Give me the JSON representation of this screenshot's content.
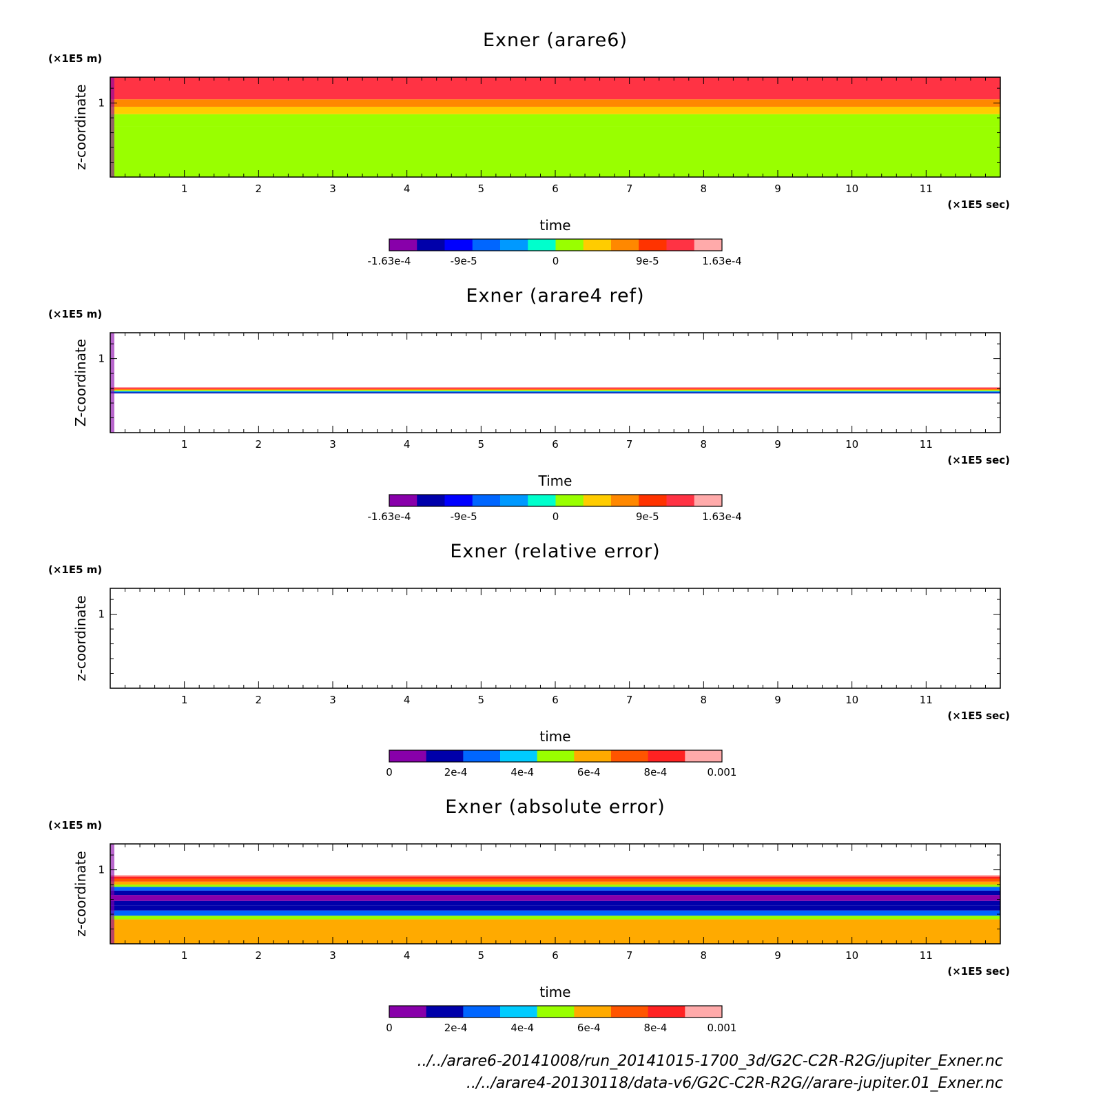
{
  "colors": {
    "diverging": [
      "#8800aa",
      "#0000aa",
      "#0000ff",
      "#0066ff",
      "#0099ff",
      "#00ffcc",
      "#99ff00",
      "#ffcc00",
      "#ff8800",
      "#ff3300",
      "#ff3344",
      "#ffaaaa"
    ],
    "sequential": [
      "#8800aa",
      "#0000aa",
      "#0066ff",
      "#00ccff",
      "#99ff00",
      "#ffaa00",
      "#ff5500",
      "#ff2222",
      "#ffaaaa"
    ]
  },
  "footer": {
    "path1": "../../arare6-20141008/run_20141015-1700_3d/G2C-C2R-R2G/jupiter_Exner.nc",
    "path2": "../../arare4-20130118/data-v6/G2C-C2R-R2G//arare-jupiter.01_Exner.nc"
  },
  "chart_data": [
    {
      "type": "heatmap",
      "title": "Exner (arare6)",
      "xlabel": "time",
      "ylabel": "z-coordinate",
      "x_unit": "(×1E5 sec)",
      "y_unit": "(×1E5 m)",
      "xlim": [
        0,
        12
      ],
      "ylim": [
        0,
        1.35
      ],
      "x_ticks": [
        "1",
        "2",
        "3",
        "4",
        "5",
        "6",
        "7",
        "8",
        "9",
        "10",
        "11"
      ],
      "y_ticks": [
        "1"
      ],
      "colorbar": {
        "min": -0.000163,
        "max": 0.000163,
        "labels": [
          "-1.63e-4",
          "-9e-5",
          "0",
          "9e-5",
          "1.63e-4"
        ]
      },
      "bands": [
        {
          "z_from": 0.0,
          "z_to": 0.68,
          "value": 0.0
        },
        {
          "z_from": 0.68,
          "z_to": 0.85,
          "value": 2e-05
        },
        {
          "z_from": 0.85,
          "z_to": 0.95,
          "value": 5e-05
        },
        {
          "z_from": 0.95,
          "z_to": 1.05,
          "value": 8e-05
        },
        {
          "z_from": 1.05,
          "z_to": 1.35,
          "value": 0.00012
        }
      ]
    },
    {
      "type": "heatmap",
      "title": "Exner (arare4 ref)",
      "xlabel": "Time",
      "ylabel": "Z-coordinate",
      "x_unit": "(×1E5 sec)",
      "y_unit": "(×1E5 m)",
      "xlim": [
        0,
        12
      ],
      "ylim": [
        0,
        1.35
      ],
      "x_ticks": [
        "1",
        "2",
        "3",
        "4",
        "5",
        "6",
        "7",
        "8",
        "9",
        "10",
        "11"
      ],
      "y_ticks": [
        "1"
      ],
      "colorbar": {
        "min": -0.000163,
        "max": 0.000163,
        "labels": [
          "-1.63e-4",
          "-9e-5",
          "0",
          "9e-5",
          "1.63e-4"
        ]
      },
      "bands": [
        {
          "z_from": 0.53,
          "z_to": 0.545,
          "value": -0.00012
        },
        {
          "z_from": 0.545,
          "z_to": 0.56,
          "value": -5e-05
        },
        {
          "z_from": 0.56,
          "z_to": 0.575,
          "value": 2e-05
        },
        {
          "z_from": 0.575,
          "z_to": 0.59,
          "value": 8e-05
        },
        {
          "z_from": 0.59,
          "z_to": 0.61,
          "value": 0.00012
        }
      ]
    },
    {
      "type": "heatmap",
      "title": "Exner (relative error)",
      "xlabel": "time",
      "ylabel": "z-coordinate",
      "x_unit": "(×1E5 sec)",
      "y_unit": "(×1E5 m)",
      "xlim": [
        0,
        12
      ],
      "ylim": [
        0,
        1.35
      ],
      "x_ticks": [
        "1",
        "2",
        "3",
        "4",
        "5",
        "6",
        "7",
        "8",
        "9",
        "10",
        "11"
      ],
      "y_ticks": [
        "1"
      ],
      "colorbar": {
        "min": 0,
        "max": 0.001,
        "labels": [
          "0",
          "2e-4",
          "4e-4",
          "6e-4",
          "8e-4",
          "0.001"
        ]
      },
      "bands": []
    },
    {
      "type": "heatmap",
      "title": "Exner (absolute error)",
      "xlabel": "time",
      "ylabel": "z-coordinate",
      "x_unit": "(×1E5 sec)",
      "y_unit": "(×1E5 m)",
      "xlim": [
        0,
        12
      ],
      "ylim": [
        0,
        1.35
      ],
      "x_ticks": [
        "1",
        "2",
        "3",
        "4",
        "5",
        "6",
        "7",
        "8",
        "9",
        "10",
        "11"
      ],
      "y_ticks": [
        "1"
      ],
      "colorbar": {
        "min": 0,
        "max": 0.001,
        "labels": [
          "0",
          "2e-4",
          "4e-4",
          "6e-4",
          "8e-4",
          "0.001"
        ]
      },
      "bands": [
        {
          "z_from": 0.0,
          "z_to": 0.33,
          "value": 0.00058
        },
        {
          "z_from": 0.33,
          "z_to": 0.38,
          "value": 0.00045
        },
        {
          "z_from": 0.38,
          "z_to": 0.45,
          "value": 0.00032
        },
        {
          "z_from": 0.45,
          "z_to": 0.52,
          "value": 0.00021
        },
        {
          "z_from": 0.52,
          "z_to": 0.58,
          "value": 0.00012
        },
        {
          "z_from": 0.58,
          "z_to": 0.66,
          "value": 4e-05
        },
        {
          "z_from": 0.66,
          "z_to": 0.72,
          "value": 0.00013
        },
        {
          "z_from": 0.72,
          "z_to": 0.77,
          "value": 0.00025
        },
        {
          "z_from": 0.77,
          "z_to": 0.8,
          "value": 0.00045
        },
        {
          "z_from": 0.8,
          "z_to": 0.84,
          "value": 0.00058
        },
        {
          "z_from": 0.84,
          "z_to": 0.88,
          "value": 0.00072
        },
        {
          "z_from": 0.88,
          "z_to": 0.91,
          "value": 0.00085
        },
        {
          "z_from": 0.91,
          "z_to": 0.93,
          "value": 0.00095
        }
      ]
    }
  ]
}
